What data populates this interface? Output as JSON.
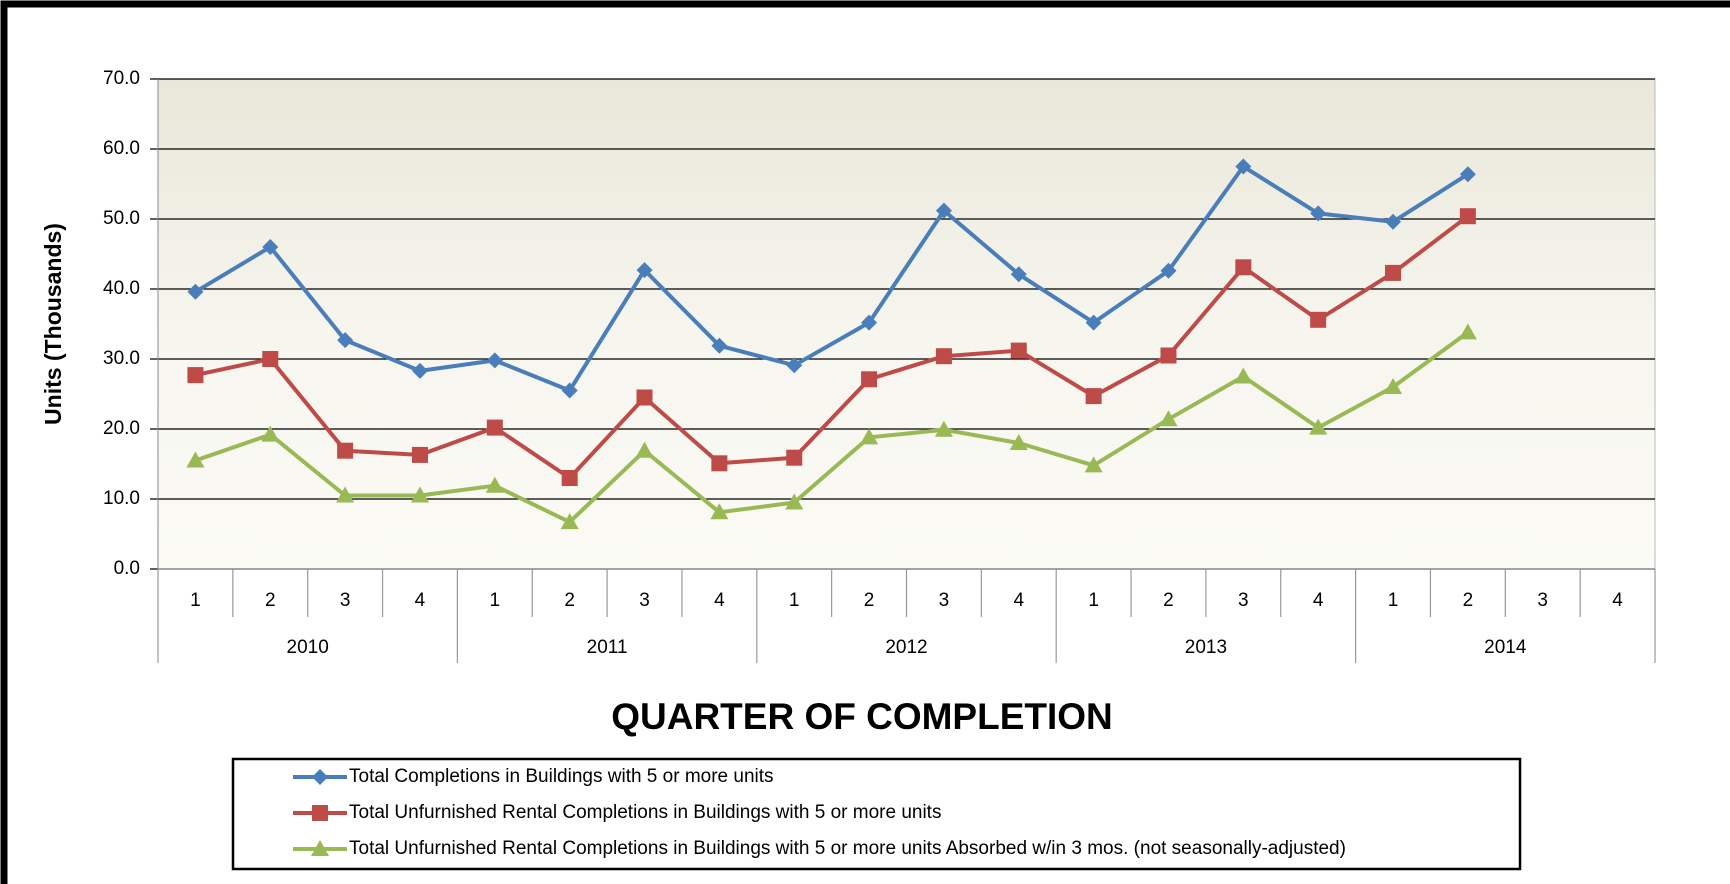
{
  "chart_data": {
    "type": "line",
    "x_label": "QUARTER OF COMPLETION",
    "y_label": "Units (Thousands)",
    "categories": [
      "1",
      "2",
      "3",
      "4",
      "1",
      "2",
      "3",
      "4",
      "1",
      "2",
      "3",
      "4",
      "1",
      "2",
      "3",
      "4",
      "1",
      "2",
      "3",
      "4"
    ],
    "groups": [
      "2010",
      "2011",
      "2012",
      "2013",
      "2014"
    ],
    "ylim": [
      0,
      70
    ],
    "yticks": [
      {
        "value": 0,
        "label": "0.0"
      },
      {
        "value": 10,
        "label": "10.0"
      },
      {
        "value": 20,
        "label": "20.0"
      },
      {
        "value": 30,
        "label": "30.0"
      },
      {
        "value": 40,
        "label": "40.0"
      },
      {
        "value": 50,
        "label": "50.0"
      },
      {
        "value": 60,
        "label": "60.0"
      },
      {
        "value": 70,
        "label": "70.0"
      }
    ],
    "grid": true,
    "series": [
      {
        "name": "Total Completions in Buildings with 5 or more units",
        "color": "#4a7ebb",
        "marker": "diamond",
        "values": [
          39.6,
          46.0,
          32.7,
          28.3,
          29.8,
          25.5,
          42.7,
          31.9,
          29.1,
          35.2,
          51.2,
          42.1,
          35.2,
          42.6,
          57.5,
          50.8,
          49.6,
          56.4,
          null,
          null
        ]
      },
      {
        "name": "Total Unfurnished Rental Completions in Buildings with 5 or more units",
        "color": "#be4b48",
        "marker": "square",
        "values": [
          27.7,
          30.0,
          16.9,
          16.3,
          20.2,
          13.0,
          24.5,
          15.1,
          15.9,
          27.1,
          30.4,
          31.2,
          24.7,
          30.5,
          43.1,
          35.6,
          42.3,
          50.4,
          null,
          null
        ]
      },
      {
        "name": "Total Unfurnished Rental Completions in Buildings with 5 or more units Absorbed w/in 3 mos. (not seasonally-adjusted)",
        "color": "#98b954",
        "marker": "triangle",
        "values": [
          15.5,
          19.2,
          10.5,
          10.5,
          11.9,
          6.7,
          16.9,
          8.1,
          9.5,
          18.8,
          19.9,
          18.0,
          14.8,
          21.4,
          27.5,
          20.2,
          26.0,
          33.8,
          null,
          null
        ]
      }
    ]
  }
}
